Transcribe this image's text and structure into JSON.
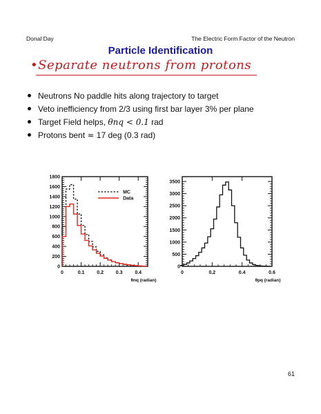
{
  "header": {
    "author": "Donal Day",
    "talk_title": "The Electric Form Factor of the Neutron"
  },
  "slide_title": "Particle Identification",
  "handwritten_note": "•Separate neutrons from protons",
  "bullets": [
    {
      "text": "Neutrons  No paddle hits along trajectory to target"
    },
    {
      "text": "Veto inefficiency from 2/3 using first bar layer 3% per plane"
    },
    {
      "prefix": "Target Field helps, ",
      "math": "θnq < 0.1",
      "suffix": " rad"
    },
    {
      "prefix": "Protons bent ",
      "math": "≈",
      "suffix": " 17 deg (0.3 rad)"
    }
  ],
  "page_number": "61",
  "colors": {
    "title": "#1a1aa8",
    "data_series": "#e0271a",
    "mc_series": "#111111"
  },
  "chart_data": [
    {
      "type": "line",
      "xlabel": "θnq (radian)",
      "xlim": [
        0,
        0.45
      ],
      "ylim": [
        0,
        1800
      ],
      "xticks": [
        "0",
        "0.1",
        "0.2",
        "0.3",
        "0.4"
      ],
      "yticks": [
        "0",
        "200",
        "400",
        "600",
        "800",
        "1000",
        "1200",
        "1400",
        "1600",
        "1800"
      ],
      "legend": {
        "placement": "top-right"
      },
      "x": [
        0.01,
        0.03,
        0.05,
        0.07,
        0.09,
        0.11,
        0.13,
        0.15,
        0.17,
        0.19,
        0.21,
        0.23,
        0.25,
        0.27,
        0.29,
        0.31,
        0.33,
        0.35,
        0.37,
        0.39,
        0.41,
        0.43
      ],
      "series": [
        {
          "name": "MC",
          "style": "dashed",
          "values": [
            800,
            1550,
            1640,
            1350,
            1050,
            820,
            640,
            500,
            390,
            300,
            230,
            170,
            130,
            95,
            70,
            50,
            35,
            25,
            16,
            10,
            6,
            3
          ]
        },
        {
          "name": "Data",
          "style": "solid",
          "values": [
            600,
            1200,
            1250,
            1050,
            820,
            650,
            520,
            410,
            330,
            260,
            205,
            160,
            125,
            95,
            72,
            55,
            42,
            31,
            22,
            15,
            9,
            5
          ]
        }
      ]
    },
    {
      "type": "line",
      "xlabel": "θpq (radian)",
      "xlim": [
        0,
        0.6
      ],
      "ylim": [
        0,
        3700
      ],
      "xticks": [
        "0",
        "0.2",
        "0.4",
        "0.6"
      ],
      "yticks": [
        "0",
        "500",
        "1000",
        "1500",
        "2000",
        "2500",
        "3000",
        "3500"
      ],
      "x": [
        0.0,
        0.02,
        0.04,
        0.06,
        0.08,
        0.1,
        0.12,
        0.14,
        0.16,
        0.18,
        0.2,
        0.22,
        0.24,
        0.26,
        0.28,
        0.3,
        0.32,
        0.34,
        0.36,
        0.38,
        0.4,
        0.42,
        0.44,
        0.46,
        0.48,
        0.5,
        0.52,
        0.54,
        0.56,
        0.58
      ],
      "series": [
        {
          "values": [
            40,
            80,
            140,
            220,
            320,
            440,
            580,
            760,
            960,
            1220,
            1550,
            1950,
            2450,
            2950,
            3350,
            3480,
            3150,
            2500,
            1800,
            1200,
            760,
            460,
            260,
            140,
            75,
            40,
            20,
            10,
            5,
            2
          ]
        }
      ]
    }
  ]
}
